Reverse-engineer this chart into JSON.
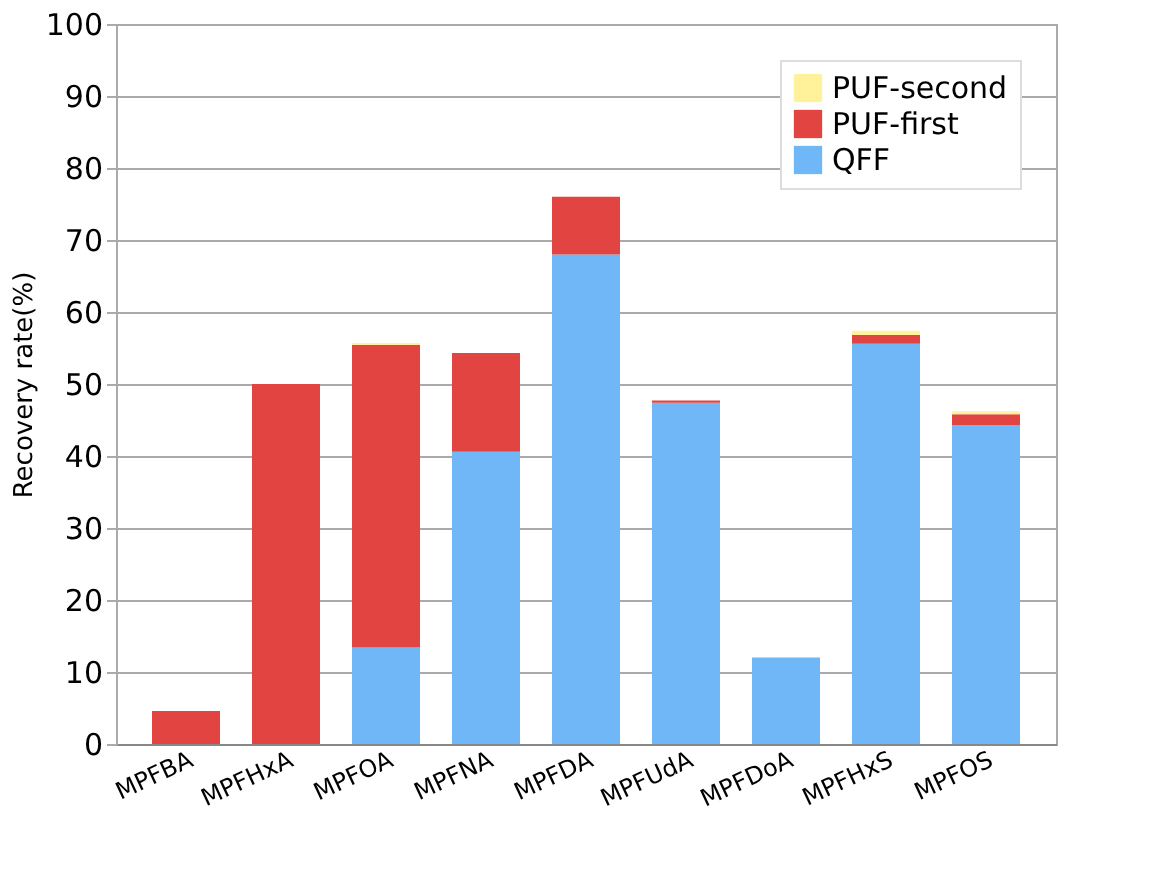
{
  "chart_data": {
    "type": "bar",
    "stacked": true,
    "ylabel": "Recovery rate(%)",
    "categories": [
      "MPFBA",
      "MPFHxA",
      "MPFOA",
      "MPFNA",
      "MPFDA",
      "MPFUdA",
      "MPFDoA",
      "MPFHxS",
      "MPFOS"
    ],
    "series": [
      {
        "name": "QFF",
        "color": "#6fb7f7",
        "values": [
          0,
          0,
          13.4,
          40.6,
          68,
          47.4,
          12,
          55.6,
          44.3
        ]
      },
      {
        "name": "PUF-first",
        "color": "#e24541",
        "values": [
          4.6,
          50,
          42,
          13.7,
          8,
          0.3,
          0,
          1.2,
          1.5
        ]
      },
      {
        "name": "PUF-second",
        "color": "#fff29a",
        "values": [
          0,
          0,
          0.3,
          0,
          0,
          0,
          0,
          0.6,
          0.4
        ]
      }
    ],
    "ylim": [
      0,
      100
    ],
    "yticks": [
      0,
      10,
      20,
      30,
      40,
      50,
      60,
      70,
      80,
      90,
      100
    ],
    "grid": "y",
    "legend": "top right"
  }
}
